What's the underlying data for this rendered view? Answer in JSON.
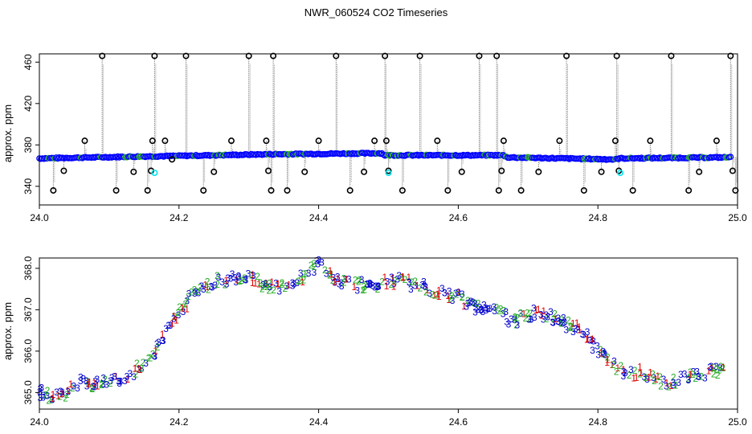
{
  "figure": {
    "title": "NWR_060524  CO2 Timeseries"
  },
  "colors": {
    "frame": "#000000",
    "dots": "#0000ff",
    "spikes": "#000000",
    "lines": "#888888",
    "cyan": "#00e5ee",
    "green": "#22aa22",
    "red": "#dd0000",
    "blue": "#0000cc"
  },
  "chart_data": [
    {
      "type": "scatter",
      "title": "",
      "xlabel": "",
      "ylabel": "approx. ppm",
      "xlim": [
        24.0,
        25.0
      ],
      "ylim": [
        322,
        468
      ],
      "x_ticks": [
        "24.0",
        "24.2",
        "24.4",
        "24.6",
        "24.8",
        "25.0"
      ],
      "y_ticks": [
        "340",
        "380",
        "420",
        "460"
      ],
      "grid": false,
      "baseline": {
        "name": "",
        "x": [
          24.0,
          24.16,
          24.165,
          24.33,
          24.335,
          24.49,
          24.495,
          24.665,
          24.67,
          24.825,
          24.83,
          24.99
        ],
        "y": [
          367,
          369,
          369,
          371,
          371,
          372,
          370,
          370,
          368,
          366,
          367,
          368
        ]
      },
      "outliers": {
        "x": [
          24.02,
          24.035,
          24.065,
          24.09,
          24.11,
          24.135,
          24.155,
          24.16,
          24.162,
          24.165,
          24.18,
          24.19,
          24.21,
          24.235,
          24.25,
          24.275,
          24.3,
          24.325,
          24.328,
          24.332,
          24.335,
          24.355,
          24.38,
          24.4,
          24.425,
          24.445,
          24.465,
          24.48,
          24.495,
          24.497,
          24.5,
          24.52,
          24.545,
          24.57,
          24.585,
          24.605,
          24.63,
          24.655,
          24.658,
          24.662,
          24.665,
          24.69,
          24.715,
          24.745,
          24.755,
          24.78,
          24.805,
          24.825,
          24.827,
          24.83,
          24.85,
          24.875,
          24.905,
          24.93,
          24.945,
          24.97,
          24.99,
          24.993,
          24.997
        ],
        "y": [
          336,
          355,
          384,
          466,
          336,
          354,
          336,
          355,
          384,
          466,
          384,
          366,
          466,
          336,
          354,
          384,
          466,
          384,
          355,
          336,
          466,
          336,
          354,
          384,
          466,
          336,
          354,
          384,
          466,
          384,
          355,
          336,
          466,
          384,
          336,
          354,
          466,
          466,
          336,
          355,
          384,
          336,
          354,
          384,
          466,
          336,
          354,
          384,
          466,
          355,
          336,
          384,
          466,
          336,
          354,
          384,
          466,
          355,
          336
        ]
      },
      "cyan_points": {
        "x": [
          24.165,
          24.5,
          24.832
        ],
        "y": [
          353,
          353,
          353
        ]
      }
    },
    {
      "type": "line",
      "title": "",
      "xlabel": "",
      "ylabel": "approx. ppm",
      "xlim": [
        24.0,
        25.0
      ],
      "ylim": [
        364.6,
        368.25
      ],
      "x_ticks": [
        "24.0",
        "24.2",
        "24.4",
        "24.6",
        "24.8",
        "25.0"
      ],
      "y_ticks": [
        "365.0",
        "366.0",
        "367.0",
        "368.0"
      ],
      "grid": false,
      "markers": [
        "1",
        "2",
        "3"
      ],
      "series": [
        {
          "name": "",
          "x": [
            24.0,
            24.02,
            24.04,
            24.06,
            24.08,
            24.1,
            24.12,
            24.14,
            24.16,
            24.18,
            24.2,
            24.22,
            24.24,
            24.26,
            24.28,
            24.3,
            24.32,
            24.34,
            24.36,
            24.38,
            24.4,
            24.42,
            24.44,
            24.46,
            24.48,
            24.5,
            24.52,
            24.54,
            24.56,
            24.58,
            24.6,
            24.62,
            24.64,
            24.66,
            24.68,
            24.7,
            24.72,
            24.74,
            24.76,
            24.78,
            24.8,
            24.82,
            24.84,
            24.86,
            24.88,
            24.9,
            24.92,
            24.94,
            24.96,
            24.98
          ],
          "y": [
            365.0,
            364.9,
            365.0,
            365.3,
            365.2,
            365.3,
            365.3,
            365.6,
            365.9,
            366.4,
            366.9,
            367.4,
            367.6,
            367.7,
            367.8,
            367.8,
            367.6,
            367.5,
            367.7,
            367.8,
            368.1,
            367.8,
            367.6,
            367.6,
            367.5,
            367.7,
            367.7,
            367.6,
            367.5,
            367.4,
            367.3,
            367.1,
            367.0,
            366.9,
            366.7,
            366.9,
            366.9,
            366.8,
            366.6,
            366.5,
            366.0,
            365.7,
            365.4,
            365.5,
            365.3,
            365.2,
            365.3,
            365.4,
            365.5,
            365.6
          ]
        }
      ]
    }
  ]
}
